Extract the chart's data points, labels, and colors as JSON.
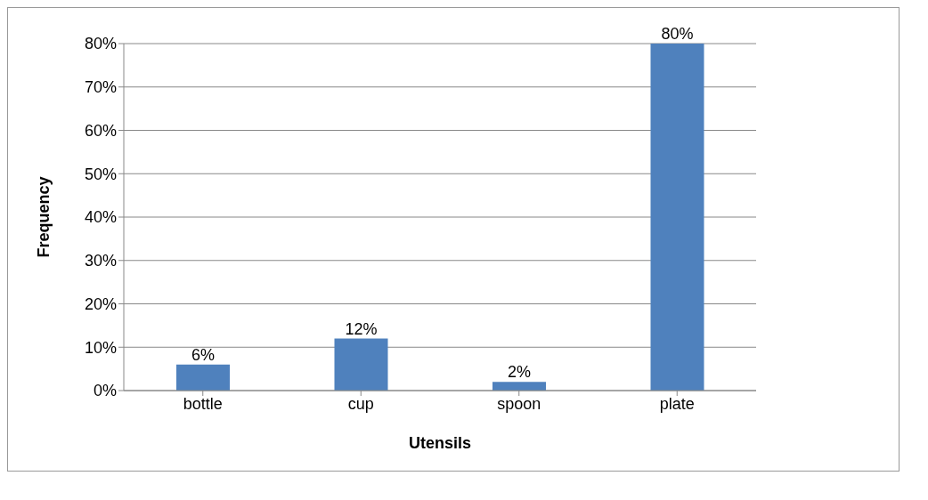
{
  "chart_data": {
    "type": "bar",
    "xlabel": "Utensils",
    "ylabel": "Frequency",
    "categories": [
      "bottle",
      "cup",
      "spoon",
      "plate"
    ],
    "values": [
      6,
      12,
      2,
      80
    ],
    "color": "#4f81bd",
    "value_labels": [
      "6%",
      "12%",
      "2%",
      "80%"
    ],
    "ylim": [
      0,
      80
    ],
    "yticks": [
      {
        "value": 0,
        "label": "0%"
      },
      {
        "value": 10,
        "label": "10%"
      },
      {
        "value": 20,
        "label": "20%"
      },
      {
        "value": 30,
        "label": "30%"
      },
      {
        "value": 40,
        "label": "40%"
      },
      {
        "value": 50,
        "label": "50%"
      },
      {
        "value": 60,
        "label": "60%"
      },
      {
        "value": 70,
        "label": "70%"
      },
      {
        "value": 80,
        "label": "80%"
      }
    ],
    "grid": "y"
  }
}
